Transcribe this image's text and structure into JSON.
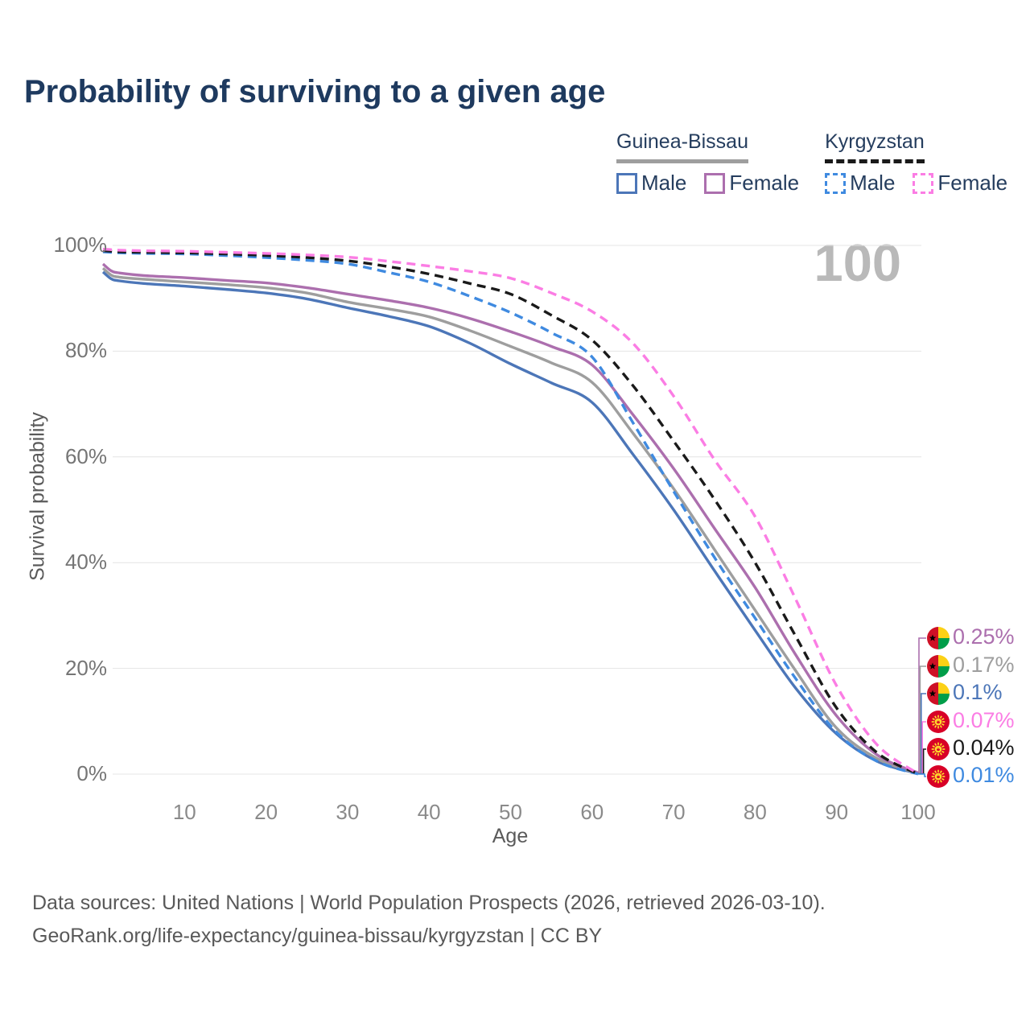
{
  "header": {
    "title": "Probability of surviving to a given age"
  },
  "legend": {
    "groups": [
      {
        "name": "Guinea-Bissau",
        "line_style": "solid",
        "underline_color": "#9e9e9e",
        "items": [
          {
            "label": "Male",
            "color": "#4c76b8",
            "dashed": false
          },
          {
            "label": "Female",
            "color": "#ac6fae",
            "dashed": false
          }
        ]
      },
      {
        "name": "Kyrgyzstan",
        "line_style": "dashed",
        "underline_color": "#1a1a1a",
        "items": [
          {
            "label": "Male",
            "color": "#3f8ae0",
            "dashed": true
          },
          {
            "label": "Female",
            "color": "#fb7de4",
            "dashed": true
          }
        ]
      }
    ]
  },
  "chart_data": {
    "type": "line",
    "title": "Probability of surviving to a given age",
    "xlabel": "Age",
    "ylabel": "Survival probability",
    "xlim": [
      0,
      100
    ],
    "ylim": [
      0,
      100
    ],
    "x_ticks": [
      10,
      20,
      30,
      40,
      50,
      60,
      70,
      80,
      90,
      100
    ],
    "y_tick_values": [
      0,
      20,
      40,
      60,
      80,
      100
    ],
    "y_tick_labels": [
      "0%",
      "20%",
      "40%",
      "60%",
      "80%",
      "100%"
    ],
    "grid": "horizontal",
    "legend_position": "top-right",
    "age_counter": "100",
    "ages": [
      0,
      1,
      2,
      5,
      10,
      15,
      20,
      25,
      30,
      35,
      40,
      45,
      50,
      55,
      60,
      65,
      70,
      75,
      80,
      85,
      90,
      95,
      100
    ],
    "series": [
      {
        "name": "Guinea-Bissau Male",
        "country": "Guinea-Bissau",
        "sex": "Male",
        "color": "#4c76b8",
        "dashed": false,
        "flag": "guinea-bissau",
        "end_label": "0.1%",
        "values": [
          95.0,
          93.7,
          93.3,
          92.8,
          92.3,
          91.7,
          91.0,
          89.9,
          88.2,
          86.6,
          84.7,
          81.5,
          77.6,
          74.0,
          70.3,
          60.5,
          50.0,
          38.5,
          27.2,
          16.2,
          7.6,
          2.4,
          0.1
        ]
      },
      {
        "name": "Guinea-Bissau Both sexes",
        "country": "Guinea-Bissau",
        "sex": "Both",
        "color": "#9e9e9e",
        "dashed": false,
        "flag": "guinea-bissau",
        "end_label": "0.17%",
        "values": [
          95.7,
          94.4,
          94.0,
          93.6,
          93.1,
          92.6,
          92.0,
          91.0,
          89.3,
          88.0,
          86.5,
          83.9,
          80.9,
          77.8,
          74.1,
          64.5,
          54.0,
          42.5,
          31.0,
          19.5,
          8.7,
          2.9,
          0.17
        ]
      },
      {
        "name": "Guinea-Bissau Female",
        "country": "Guinea-Bissau",
        "sex": "Female",
        "color": "#ac6fae",
        "dashed": false,
        "flag": "guinea-bissau",
        "end_label": "0.25%",
        "values": [
          96.5,
          95.2,
          94.8,
          94.3,
          93.9,
          93.4,
          92.9,
          92.0,
          90.8,
          89.6,
          88.2,
          86.2,
          83.7,
          80.9,
          77.4,
          68.0,
          57.8,
          46.5,
          35.3,
          22.5,
          11.0,
          3.6,
          0.25
        ]
      },
      {
        "name": "Kyrgyzstan Male",
        "country": "Kyrgyzstan",
        "sex": "Male",
        "color": "#3f8ae0",
        "dashed": true,
        "flag": "kyrgyzstan",
        "end_label": "0.01%",
        "values": [
          98.8,
          98.7,
          98.6,
          98.5,
          98.4,
          98.1,
          97.7,
          97.2,
          96.5,
          94.9,
          93.1,
          90.4,
          87.3,
          83.5,
          78.9,
          66.5,
          53.5,
          41.0,
          29.5,
          18.0,
          7.9,
          2.4,
          0.01
        ]
      },
      {
        "name": "Kyrgyzstan Both sexes",
        "country": "Kyrgyzstan",
        "sex": "Both",
        "color": "#1a1a1a",
        "dashed": true,
        "flag": "kyrgyzstan",
        "end_label": "0.04%",
        "values": [
          99.0,
          98.9,
          98.8,
          98.7,
          98.6,
          98.4,
          98.1,
          97.7,
          97.1,
          96.0,
          94.6,
          92.8,
          90.8,
          86.8,
          82.1,
          73.5,
          63.0,
          52.0,
          40.0,
          26.0,
          12.5,
          4.0,
          0.04
        ]
      },
      {
        "name": "Kyrgyzstan Female",
        "country": "Kyrgyzstan",
        "sex": "Female",
        "color": "#fb7de4",
        "dashed": true,
        "flag": "kyrgyzstan",
        "end_label": "0.07%",
        "values": [
          99.3,
          99.2,
          99.1,
          99.0,
          98.9,
          98.7,
          98.5,
          98.2,
          97.8,
          97.0,
          96.1,
          95.1,
          93.8,
          91.0,
          87.5,
          81.5,
          71.5,
          59.5,
          48.7,
          33.0,
          16.7,
          5.5,
          0.07
        ]
      }
    ]
  },
  "footer": {
    "line1": "Data sources: United Nations | World Population Prospects (2026, retrieved 2026-03-10).",
    "line2": "GeoRank.org/life-expectancy/guinea-bissau/kyrgyzstan | CC BY"
  }
}
